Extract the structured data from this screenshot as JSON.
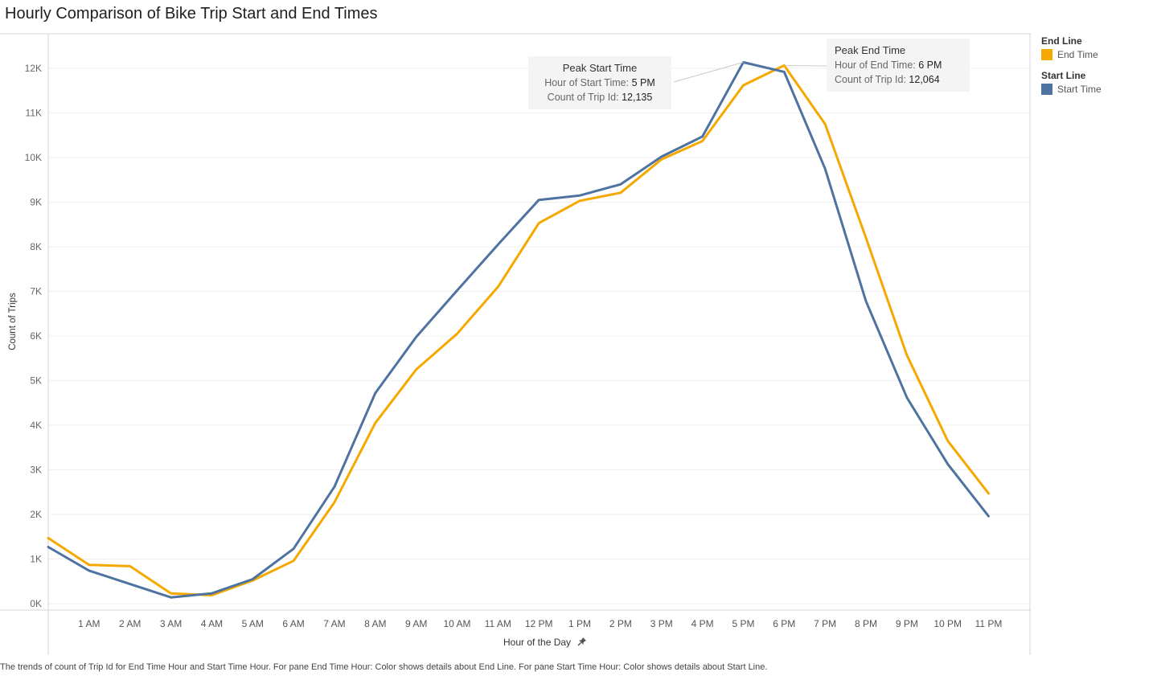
{
  "title": "Hourly Comparison of Bike Trip Start and End Times",
  "caption": "The trends of count of Trip Id for End Time Hour and Start Time Hour.  For pane End Time Hour:  Color shows details about End Line.  For pane Start Time Hour:  Color shows details about Start Line.",
  "legend": {
    "end": {
      "title": "End Line",
      "item": "End Time",
      "color": "#F5A800"
    },
    "start": {
      "title": "Start Line",
      "item": "Start Time",
      "color": "#4E73A0"
    }
  },
  "annotations": {
    "start": {
      "title": "Peak Start Time",
      "line1_label": "Hour of Start Time:",
      "line1_value": "5 PM",
      "line2_label": "Count of Trip Id:",
      "line2_value": "12,135"
    },
    "end": {
      "title": "Peak End Time",
      "line1_label": "Hour of End Time:",
      "line1_value": "6 PM",
      "line2_label": "Count of Trip Id:",
      "line2_value": "12,064"
    }
  },
  "pin_icon": "pin-icon",
  "chart_data": {
    "type": "line",
    "title": "Hourly Comparison of Bike Trip Start and End Times",
    "xlabel": "Hour of the Day",
    "ylabel": "Count of Trips",
    "x_ticks": [
      "1 AM",
      "2 AM",
      "3 AM",
      "4 AM",
      "5 AM",
      "6 AM",
      "7 AM",
      "8 AM",
      "9 AM",
      "10 AM",
      "11 AM",
      "12 PM",
      "1 PM",
      "2 PM",
      "3 PM",
      "4 PM",
      "5 PM",
      "6 PM",
      "7 PM",
      "8 PM",
      "9 PM",
      "10 PM",
      "11 PM"
    ],
    "y_ticks": [
      "0K",
      "1K",
      "2K",
      "3K",
      "4K",
      "5K",
      "6K",
      "7K",
      "8K",
      "9K",
      "10K",
      "11K",
      "12K"
    ],
    "ylim": [
      0,
      12000
    ],
    "x_hours": [
      0,
      1,
      2,
      3,
      4,
      5,
      6,
      7,
      8,
      9,
      10,
      11,
      12,
      13,
      14,
      15,
      16,
      17,
      18,
      19,
      20,
      21,
      22,
      23
    ],
    "series": [
      {
        "name": "End Time",
        "color": "#F5A800",
        "values": [
          1470,
          870,
          840,
          230,
          190,
          520,
          960,
          2270,
          4050,
          5250,
          6050,
          7100,
          8530,
          9030,
          9210,
          9960,
          10370,
          11620,
          12064,
          10750,
          8200,
          5570,
          3650,
          2470
        ]
      },
      {
        "name": "Start Time",
        "color": "#4E73A0",
        "values": [
          1270,
          740,
          440,
          140,
          230,
          550,
          1230,
          2620,
          4720,
          5980,
          7020,
          8050,
          9050,
          9150,
          9400,
          10020,
          10470,
          12135,
          11920,
          9750,
          6780,
          4620,
          3130,
          1960
        ]
      }
    ],
    "grid": true,
    "legend_position": "right"
  }
}
